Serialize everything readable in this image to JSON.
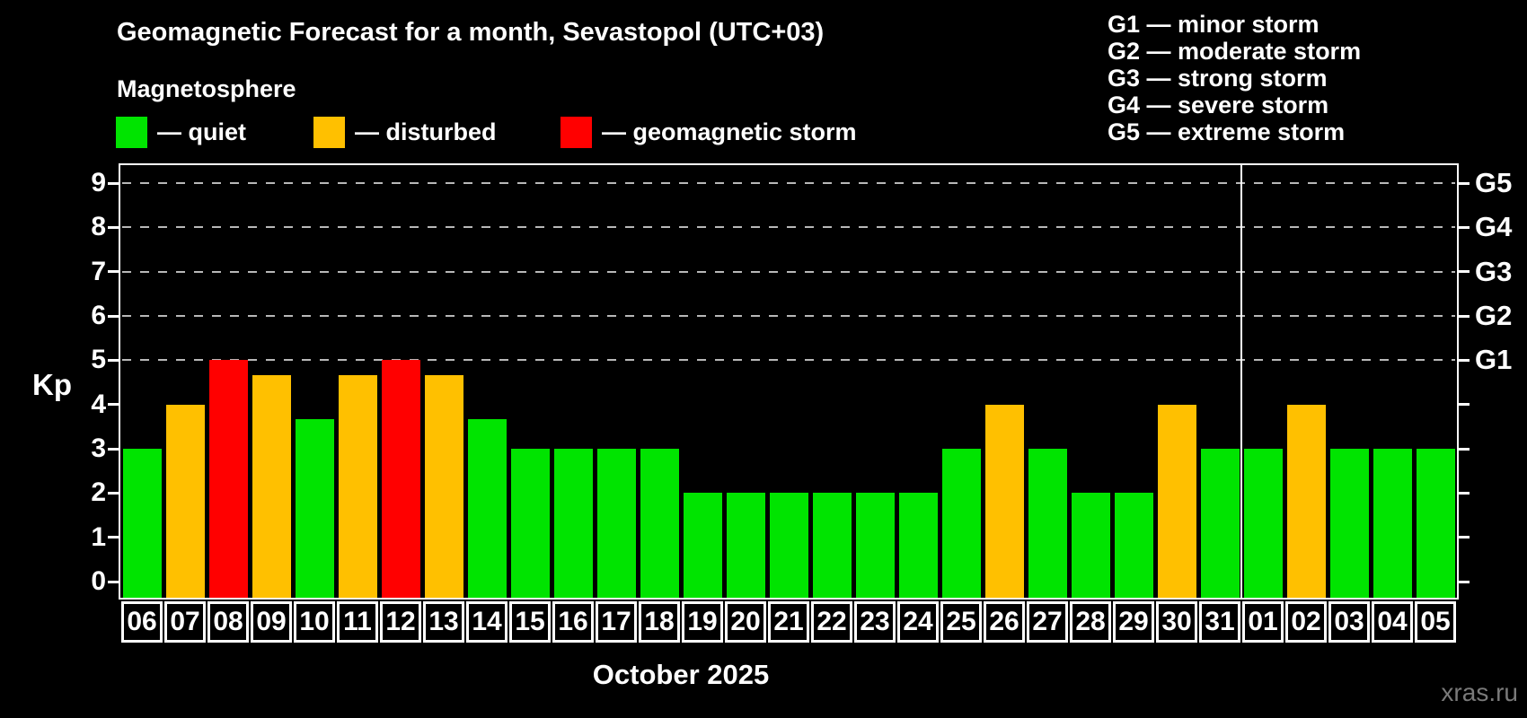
{
  "title": "Geomagnetic Forecast for a month, Sevastopol (UTC+03)",
  "subtitle": "Magnetosphere",
  "legend": {
    "items": [
      {
        "status": "quiet",
        "label": "— quiet",
        "x": 129
      },
      {
        "status": "disturbed",
        "label": "— disturbed",
        "x": 349
      },
      {
        "status": "storm",
        "label": "— geomagnetic storm",
        "x": 624
      }
    ]
  },
  "storm_scale_legend": [
    "G1 — minor storm",
    "G2 — moderate storm",
    "G3 — strong storm",
    "G4 — severe storm",
    "G5 — extreme storm"
  ],
  "colors": {
    "quiet": "#00e400",
    "disturbed": "#ffc000",
    "storm": "#ff0000",
    "frame": "#ffffff",
    "gridline": "#b8b8b8",
    "watermark_text": "#7a7a7a",
    "background": "#000000"
  },
  "x_axis_label": "October 2025",
  "watermark": "xras.ru",
  "chart_data": {
    "type": "bar",
    "title": "Geomagnetic Forecast for a month, Sevastopol (UTC+03)",
    "xlabel": "October 2025",
    "ylabel": "Kp",
    "categories": [
      "06",
      "07",
      "08",
      "09",
      "10",
      "11",
      "12",
      "13",
      "14",
      "15",
      "16",
      "17",
      "18",
      "19",
      "20",
      "21",
      "22",
      "23",
      "24",
      "25",
      "26",
      "27",
      "28",
      "29",
      "30",
      "31",
      "01",
      "02",
      "03",
      "04",
      "05"
    ],
    "values": [
      3,
      4,
      5,
      4.67,
      3.67,
      4.67,
      5,
      4.67,
      3.67,
      3,
      3,
      3,
      3,
      2,
      2,
      2,
      2,
      2,
      2,
      3,
      4,
      3,
      2,
      2,
      4,
      3,
      3,
      4,
      3,
      3,
      3
    ],
    "statuses": [
      "quiet",
      "disturbed",
      "storm",
      "disturbed",
      "quiet",
      "disturbed",
      "storm",
      "disturbed",
      "quiet",
      "quiet",
      "quiet",
      "quiet",
      "quiet",
      "quiet",
      "quiet",
      "quiet",
      "quiet",
      "quiet",
      "quiet",
      "quiet",
      "disturbed",
      "quiet",
      "quiet",
      "quiet",
      "disturbed",
      "quiet",
      "quiet",
      "disturbed",
      "quiet",
      "quiet",
      "quiet"
    ],
    "ylim": [
      -0.4,
      9.4
    ],
    "y_ticks": [
      0,
      1,
      2,
      3,
      4,
      5,
      6,
      7,
      8,
      9
    ],
    "dashed_gridlines_at": [
      5,
      6,
      7,
      8,
      9
    ],
    "right_axis_labels": [
      {
        "value": 5,
        "label": "G1"
      },
      {
        "value": 6,
        "label": "G2"
      },
      {
        "value": 7,
        "label": "G3"
      },
      {
        "value": 8,
        "label": "G4"
      },
      {
        "value": 9,
        "label": "G5"
      }
    ],
    "month_separator_after_index": 25,
    "legend_position": "top-left",
    "grid": "dashed horizontal lines at storm levels only"
  }
}
